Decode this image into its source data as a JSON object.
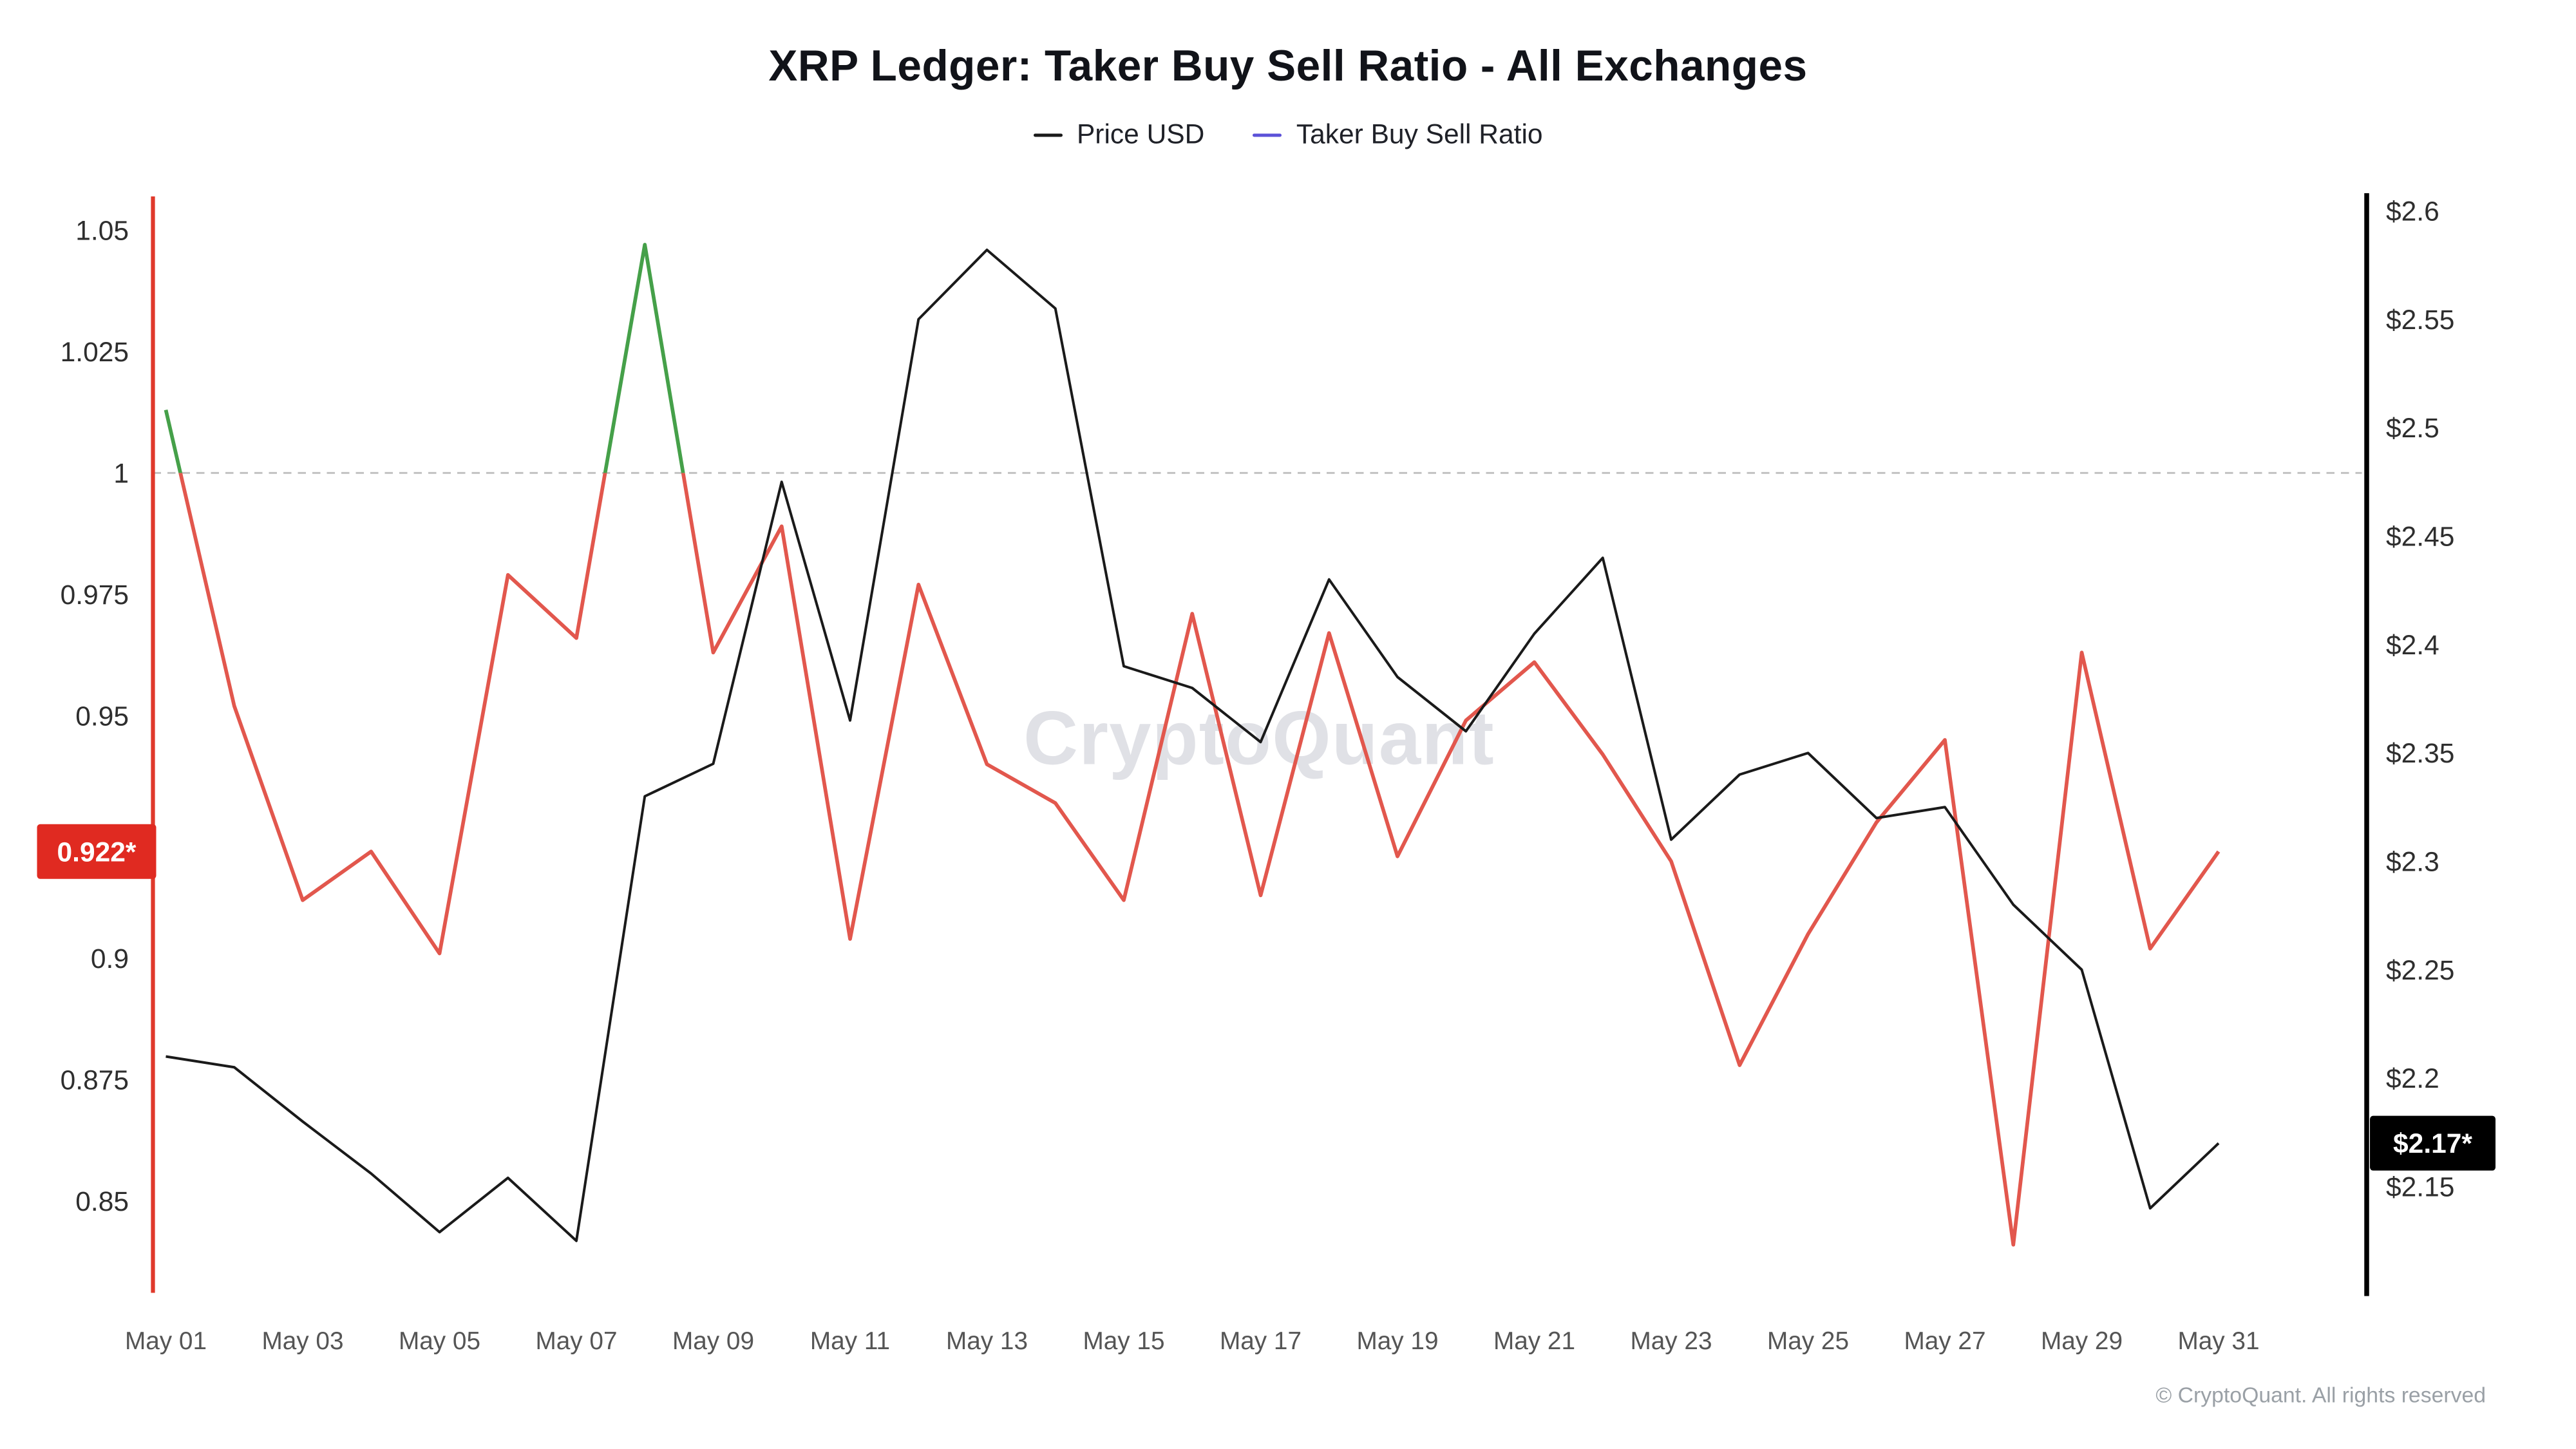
{
  "title": "XRP Ledger: Taker Buy Sell Ratio - All Exchanges",
  "watermark": "CryptoQuant",
  "footer": "© CryptoQuant. All rights reserved",
  "legend": [
    {
      "label": "Price USD",
      "color": "#1a1a1a"
    },
    {
      "label": "Taker Buy Sell Ratio",
      "color": "#5b51d8"
    }
  ],
  "colors": {
    "ratio_line_below_1": "#e2574d",
    "ratio_line_above_1": "#45a049",
    "price_line": "#1a1a1a",
    "left_axis_line": "#e0392b",
    "right_axis_line": "#000000",
    "baseline_dashed": "#c2c2c2",
    "ratio_badge_bg": "#e02a21",
    "price_badge_bg": "#000000",
    "badge_text": "#ffffff",
    "tick_text": "#2e2e2e",
    "x_tick_text": "#555555"
  },
  "chart_data": {
    "type": "line",
    "title": "XRP Ledger: Taker Buy Sell Ratio - All Exchanges",
    "x": [
      "May 01",
      "May 02",
      "May 03",
      "May 04",
      "May 05",
      "May 06",
      "May 07",
      "May 08",
      "May 09",
      "May 10",
      "May 11",
      "May 12",
      "May 13",
      "May 14",
      "May 15",
      "May 16",
      "May 17",
      "May 18",
      "May 19",
      "May 20",
      "May 21",
      "May 22",
      "May 23",
      "May 24",
      "May 25",
      "May 26",
      "May 27",
      "May 28",
      "May 29",
      "May 30",
      "May 31"
    ],
    "x_tick_labels": [
      "May 01",
      "May 03",
      "May 05",
      "May 07",
      "May 09",
      "May 11",
      "May 13",
      "May 15",
      "May 17",
      "May 19",
      "May 21",
      "May 23",
      "May 25",
      "May 27",
      "May 29",
      "May 31"
    ],
    "series": [
      {
        "name": "Taker Buy Sell Ratio",
        "axis": "left",
        "values": [
          1.013,
          0.952,
          0.912,
          0.922,
          0.901,
          0.979,
          0.966,
          1.047,
          0.963,
          0.989,
          0.904,
          0.977,
          0.94,
          0.932,
          0.912,
          0.971,
          0.913,
          0.967,
          0.921,
          0.949,
          0.961,
          0.942,
          0.92,
          0.878,
          0.905,
          0.928,
          0.945,
          0.841,
          0.963,
          0.902,
          0.922
        ]
      },
      {
        "name": "Price USD",
        "axis": "right",
        "values": [
          2.21,
          2.205,
          2.18,
          2.156,
          2.129,
          2.154,
          2.125,
          2.33,
          2.345,
          2.475,
          2.365,
          2.55,
          2.582,
          2.555,
          2.39,
          2.38,
          2.355,
          2.43,
          2.385,
          2.36,
          2.405,
          2.44,
          2.31,
          2.34,
          2.35,
          2.32,
          2.325,
          2.28,
          2.25,
          2.14,
          2.17
        ]
      }
    ],
    "left_axis": {
      "label": "Taker Buy Sell Ratio",
      "range": [
        0.8305,
        1.0577
      ],
      "ticks": [
        {
          "label": "1.05",
          "value": 1.05
        },
        {
          "label": "1.025",
          "value": 1.025
        },
        {
          "label": "1",
          "value": 1.0
        },
        {
          "label": "0.975",
          "value": 0.975
        },
        {
          "label": "0.95",
          "value": 0.95
        },
        {
          "label": "0.9",
          "value": 0.9
        },
        {
          "label": "0.875",
          "value": 0.875
        },
        {
          "label": "0.85",
          "value": 0.85
        }
      ],
      "badge": {
        "label": "0.922*",
        "value": 0.922
      }
    },
    "right_axis": {
      "label": "Price USD",
      "range": [
        2.0995,
        2.6082
      ],
      "ticks": [
        {
          "label": "$2.6",
          "value": 2.6
        },
        {
          "label": "$2.55",
          "value": 2.55
        },
        {
          "label": "$2.5",
          "value": 2.5
        },
        {
          "label": "$2.45",
          "value": 2.45
        },
        {
          "label": "$2.4",
          "value": 2.4
        },
        {
          "label": "$2.35",
          "value": 2.35
        },
        {
          "label": "$2.3",
          "value": 2.3
        },
        {
          "label": "$2.25",
          "value": 2.25
        },
        {
          "label": "$2.2",
          "value": 2.2
        },
        {
          "label": "$2.15",
          "value": 2.15
        }
      ],
      "badge": {
        "label": "$2.17*",
        "value": 2.17
      }
    },
    "baseline": {
      "value": 1.0,
      "style": "dashed"
    },
    "grid": "off",
    "legend_position": "top-center"
  }
}
